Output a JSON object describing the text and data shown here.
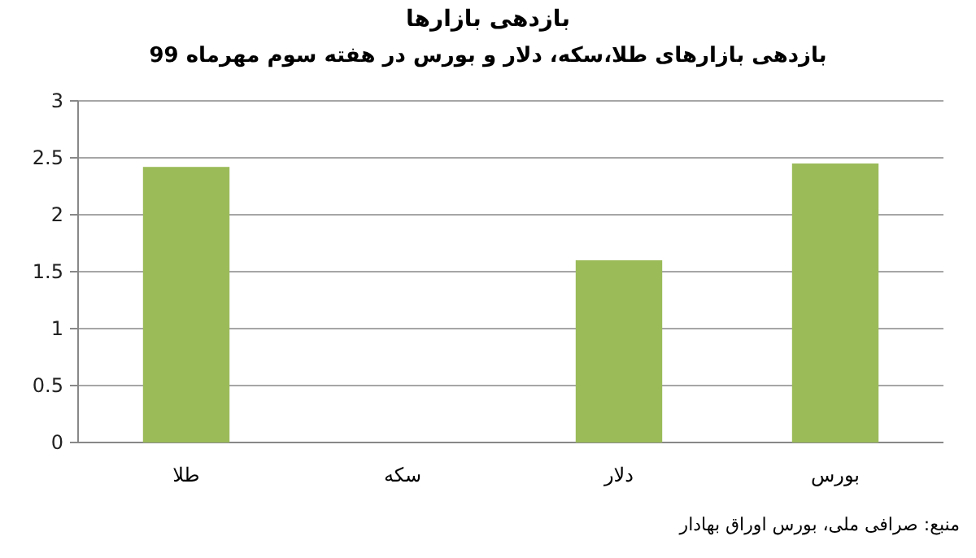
{
  "chart_data": {
    "type": "bar",
    "title": "بازدهی بازارها",
    "subtitle": "بازدهی بازارهای طلا،سکه، دلار و بورس در هفته سوم مهرماه 99",
    "categories": [
      "طلا",
      "سکه",
      "دلار",
      "بورس"
    ],
    "values": [
      2.42,
      0,
      1.6,
      2.45
    ],
    "color": "#9bbb59",
    "ylim": [
      0,
      3
    ],
    "yticks": [
      0,
      0.5,
      1,
      1.5,
      2,
      2.5,
      3
    ],
    "grid": "y",
    "annotations": [
      "منبع: صرافی ملی، بورس اوراق بهادار"
    ]
  }
}
